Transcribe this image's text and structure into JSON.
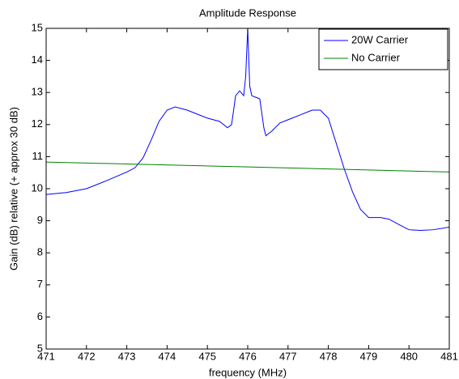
{
  "chart_data": {
    "type": "line",
    "title": "Amplitude Response",
    "x_label": "frequency (MHz)",
    "y_label": "Gain (dB) relative (+ approx 30 dB)",
    "xlim": [
      471,
      481
    ],
    "xticks": [
      471,
      472,
      473,
      474,
      475,
      476,
      477,
      478,
      479,
      480,
      481
    ],
    "ylim": [
      5,
      15
    ],
    "yticks": [
      5,
      6,
      7,
      8,
      9,
      10,
      11,
      12,
      13,
      14,
      15
    ],
    "legend": "upper right",
    "series": [
      {
        "name": "20W Carrier",
        "color": "#0000ff",
        "x": [
          471,
          471.5,
          472,
          472.5,
          473,
          473.2,
          473.4,
          473.6,
          473.8,
          474,
          474.2,
          474.5,
          475,
          475.3,
          475.5,
          475.6,
          475.7,
          475.8,
          475.9,
          475.95,
          476,
          476.05,
          476.1,
          476.2,
          476.3,
          476.4,
          476.45,
          476.6,
          476.8,
          477,
          477.3,
          477.6,
          477.8,
          478,
          478.2,
          478.4,
          478.6,
          478.8,
          479,
          479.3,
          479.5,
          479.8,
          480,
          480.3,
          480.6,
          481
        ],
        "values": [
          9.82,
          9.88,
          10.0,
          10.25,
          10.52,
          10.65,
          10.95,
          11.5,
          12.1,
          12.45,
          12.55,
          12.45,
          12.2,
          12.1,
          11.9,
          12.0,
          12.9,
          13.05,
          12.9,
          13.5,
          15,
          13.2,
          12.9,
          12.85,
          12.8,
          11.9,
          11.65,
          11.8,
          12.05,
          12.15,
          12.3,
          12.45,
          12.45,
          12.2,
          11.4,
          10.6,
          9.9,
          9.35,
          9.1,
          9.1,
          9.05,
          8.85,
          8.72,
          8.7,
          8.72,
          8.8
        ]
      },
      {
        "name": "No Carrier",
        "color": "#008000",
        "x": [
          471,
          476,
          481
        ],
        "values": [
          10.83,
          10.68,
          10.52
        ]
      }
    ]
  }
}
